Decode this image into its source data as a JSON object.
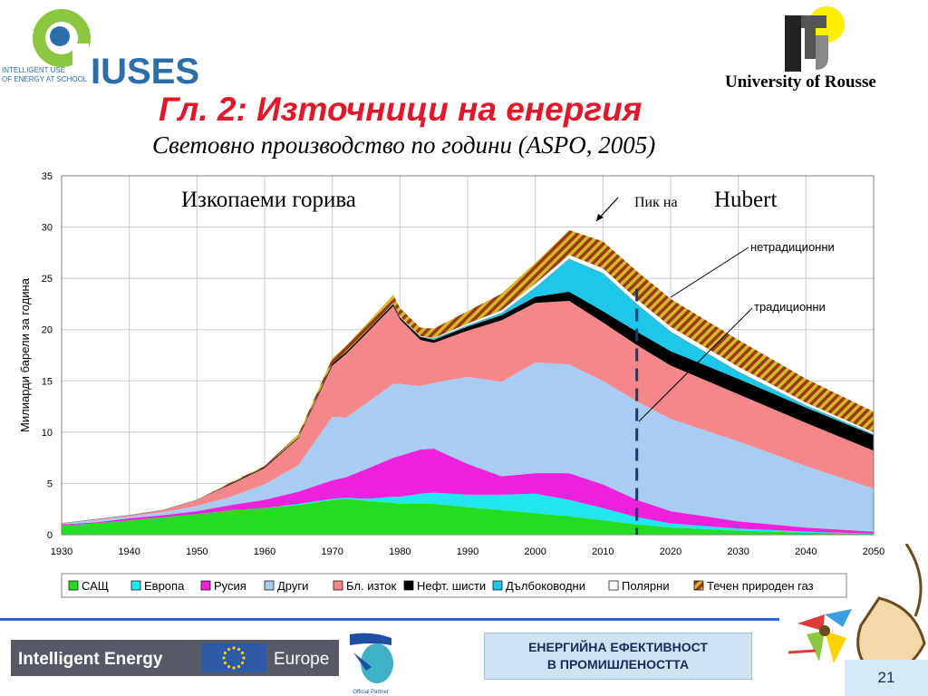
{
  "header": {
    "logo_text_small": "INTELLIGENT USE\nOF ENERGY AT SCHOOL",
    "logo_text_brand": "IUSES",
    "university": "University of Rousse"
  },
  "slide": {
    "title": "Гл. 2: Източници на енергия",
    "subtitle": "Световно производство по години (ASPO, 2005)"
  },
  "footer": {
    "ie_left": "Intelligent Energy",
    "ie_right": "Europe",
    "partner_caption": "Official Partner",
    "topic_line1": "ЕНЕРГИЙНА ЕФЕКТИВНОСТ",
    "topic_line2": "В ПРОМИШЛЕНОСТТА",
    "page_number": "21"
  },
  "colors": {
    "title_red": "#e0182a",
    "usa": "#22dd22",
    "europe": "#22e6f0",
    "russia": "#ee22dd",
    "others": "#a8ccf2",
    "middle_east": "#f4878a",
    "oil_shale": "#000000",
    "deepwater": "#1ec6ea",
    "polar": "#ffffff",
    "ngl": "#c8a020"
  },
  "chart_data": {
    "type": "area",
    "ylabel": "Милиарди барели за година",
    "xlabel": "",
    "x_ticks": [
      1930,
      1940,
      1950,
      1960,
      1970,
      1980,
      1990,
      2000,
      2010,
      2020,
      2030,
      2040,
      2050
    ],
    "y_ticks": [
      0,
      5,
      10,
      15,
      20,
      25,
      30,
      35
    ],
    "xlim": [
      1930,
      2050
    ],
    "ylim": [
      0,
      35
    ],
    "grid": true,
    "legend_position": "bottom",
    "annotations": {
      "fossil": "Изкопаеми горива",
      "peak_prefix": "Пик на",
      "peak_name": "Hubert",
      "unconventional": "нетрадиционни",
      "conventional": "традиционни"
    },
    "x": [
      1930,
      1935,
      1940,
      1945,
      1950,
      1955,
      1960,
      1965,
      1970,
      1972,
      1975,
      1979,
      1980,
      1983,
      1985,
      1990,
      1995,
      2000,
      2005,
      2010,
      2015,
      2020,
      2030,
      2040,
      2050
    ],
    "series": [
      {
        "name": "САЩ",
        "key": "usa",
        "values": [
          0.9,
          1.1,
          1.4,
          1.7,
          2.0,
          2.4,
          2.6,
          2.9,
          3.4,
          3.5,
          3.3,
          3.1,
          3.0,
          3.0,
          3.0,
          2.7,
          2.4,
          2.1,
          1.8,
          1.4,
          1.0,
          0.7,
          0.4,
          0.2,
          0.1
        ]
      },
      {
        "name": "Европа",
        "key": "europe",
        "values": [
          0.0,
          0.0,
          0.0,
          0.0,
          0.0,
          0.0,
          0.0,
          0.1,
          0.1,
          0.1,
          0.2,
          0.6,
          0.7,
          1.0,
          1.1,
          1.2,
          1.5,
          1.9,
          1.6,
          1.2,
          0.7,
          0.4,
          0.2,
          0.1,
          0.0
        ]
      },
      {
        "name": "Русия",
        "key": "russia",
        "values": [
          0.1,
          0.1,
          0.2,
          0.2,
          0.3,
          0.5,
          0.8,
          1.2,
          1.8,
          2.0,
          2.9,
          3.8,
          4.0,
          4.3,
          4.3,
          3.0,
          1.8,
          2.0,
          2.6,
          2.3,
          1.7,
          1.2,
          0.7,
          0.4,
          0.2
        ]
      },
      {
        "name": "Други",
        "key": "others",
        "values": [
          0.1,
          0.2,
          0.2,
          0.3,
          0.5,
          0.8,
          1.5,
          2.6,
          6.2,
          5.8,
          6.4,
          7.2,
          7.0,
          6.2,
          6.4,
          8.5,
          9.2,
          10.8,
          10.6,
          10.1,
          9.6,
          9.0,
          7.8,
          6.0,
          4.2
        ]
      },
      {
        "name": "Бл. изток",
        "key": "middle_east",
        "values": [
          0.0,
          0.1,
          0.1,
          0.2,
          0.6,
          1.2,
          1.6,
          2.6,
          5.0,
          6.2,
          6.8,
          7.6,
          6.3,
          4.5,
          3.9,
          4.5,
          6.0,
          5.8,
          6.2,
          5.7,
          5.5,
          5.2,
          4.6,
          4.2,
          3.7
        ]
      },
      {
        "name": "Нефт. шисти",
        "key": "oil_shale",
        "values": [
          0.0,
          0.0,
          0.0,
          0.0,
          0.0,
          0.1,
          0.1,
          0.1,
          0.2,
          0.2,
          0.2,
          0.2,
          0.2,
          0.3,
          0.3,
          0.4,
          0.5,
          0.6,
          0.9,
          1.1,
          1.3,
          1.4,
          1.5,
          1.5,
          1.5
        ]
      },
      {
        "name": "Дълбоководни",
        "key": "deepwater",
        "values": [
          0.0,
          0.0,
          0.0,
          0.0,
          0.0,
          0.0,
          0.0,
          0.0,
          0.0,
          0.0,
          0.0,
          0.0,
          0.0,
          0.0,
          0.1,
          0.1,
          0.2,
          0.9,
          3.2,
          3.7,
          2.7,
          1.9,
          0.7,
          0.2,
          0.1
        ]
      },
      {
        "name": "Полярни",
        "key": "polar",
        "values": [
          0.0,
          0.0,
          0.0,
          0.0,
          0.0,
          0.0,
          0.0,
          0.0,
          0.0,
          0.0,
          0.0,
          0.1,
          0.1,
          0.1,
          0.1,
          0.2,
          0.3,
          0.4,
          0.4,
          0.5,
          0.5,
          0.5,
          0.5,
          0.3,
          0.2
        ]
      },
      {
        "name": "Течен природен газ",
        "key": "ngl",
        "values": [
          0.0,
          0.0,
          0.0,
          0.0,
          0.0,
          0.1,
          0.1,
          0.3,
          0.5,
          0.6,
          0.7,
          0.8,
          0.8,
          0.8,
          0.9,
          1.2,
          1.6,
          2.0,
          2.4,
          2.6,
          2.7,
          2.7,
          2.6,
          2.3,
          2.0
        ]
      }
    ],
    "projection_year": 2015
  }
}
